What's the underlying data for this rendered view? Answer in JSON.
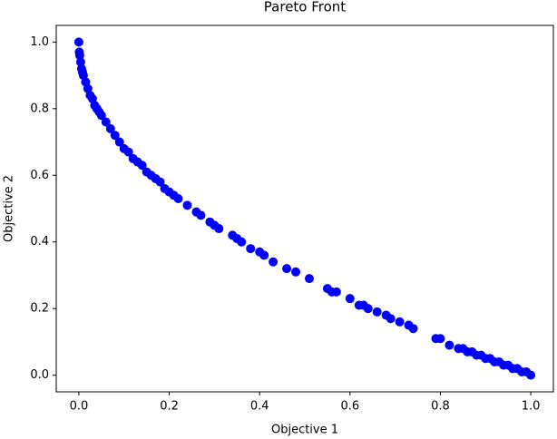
{
  "chart_data": {
    "type": "scatter",
    "title": "Pareto Front",
    "x_label": "Objective 1",
    "y_label": "Objective 2",
    "series": [
      {
        "color": "#0000ff",
        "x": [
          0.0,
          0.001,
          0.002,
          0.004,
          0.006,
          0.008,
          0.01,
          0.015,
          0.02,
          0.025,
          0.03,
          0.035,
          0.04,
          0.045,
          0.05,
          0.06,
          0.07,
          0.08,
          0.09,
          0.1,
          0.11,
          0.12,
          0.13,
          0.14,
          0.15,
          0.16,
          0.17,
          0.18,
          0.19,
          0.2,
          0.21,
          0.22,
          0.24,
          0.26,
          0.27,
          0.29,
          0.3,
          0.31,
          0.34,
          0.35,
          0.36,
          0.38,
          0.4,
          0.41,
          0.43,
          0.46,
          0.48,
          0.51,
          0.55,
          0.56,
          0.57,
          0.6,
          0.62,
          0.63,
          0.64,
          0.66,
          0.68,
          0.69,
          0.71,
          0.73,
          0.74,
          0.79,
          0.8,
          0.82,
          0.84,
          0.85,
          0.86,
          0.87,
          0.88,
          0.89,
          0.9,
          0.91,
          0.92,
          0.93,
          0.94,
          0.95,
          0.96,
          0.97,
          0.98,
          0.99,
          1.0
        ],
        "values": [
          1.0,
          0.97,
          0.96,
          0.94,
          0.92,
          0.91,
          0.9,
          0.88,
          0.86,
          0.84,
          0.83,
          0.81,
          0.8,
          0.79,
          0.78,
          0.76,
          0.74,
          0.72,
          0.7,
          0.68,
          0.67,
          0.65,
          0.64,
          0.63,
          0.61,
          0.6,
          0.59,
          0.58,
          0.56,
          0.55,
          0.54,
          0.53,
          0.51,
          0.49,
          0.48,
          0.46,
          0.45,
          0.44,
          0.42,
          0.41,
          0.4,
          0.38,
          0.37,
          0.36,
          0.34,
          0.32,
          0.31,
          0.29,
          0.26,
          0.25,
          0.25,
          0.23,
          0.21,
          0.21,
          0.2,
          0.19,
          0.18,
          0.17,
          0.16,
          0.15,
          0.14,
          0.11,
          0.11,
          0.09,
          0.08,
          0.08,
          0.07,
          0.07,
          0.06,
          0.06,
          0.05,
          0.05,
          0.04,
          0.04,
          0.03,
          0.03,
          0.02,
          0.02,
          0.01,
          0.01,
          0.0
        ]
      }
    ],
    "xlim": [
      -0.05,
      1.05
    ],
    "ylim": [
      -0.05,
      1.05
    ],
    "xticks": [
      {
        "value": 0,
        "label": "0.0"
      },
      {
        "value": 0.2,
        "label": "0.2"
      },
      {
        "value": 0.4,
        "label": "0.4"
      },
      {
        "value": 0.6,
        "label": "0.6"
      },
      {
        "value": 0.8,
        "label": "0.8"
      },
      {
        "value": 1,
        "label": "1.0"
      }
    ],
    "yticks": [
      {
        "value": 0,
        "label": "0.0"
      },
      {
        "value": 0.2,
        "label": "0.2"
      },
      {
        "value": 0.4,
        "label": "0.4"
      },
      {
        "value": 0.6,
        "label": "0.6"
      },
      {
        "value": 0.8,
        "label": "0.8"
      },
      {
        "value": 1,
        "label": "1.0"
      }
    ]
  }
}
